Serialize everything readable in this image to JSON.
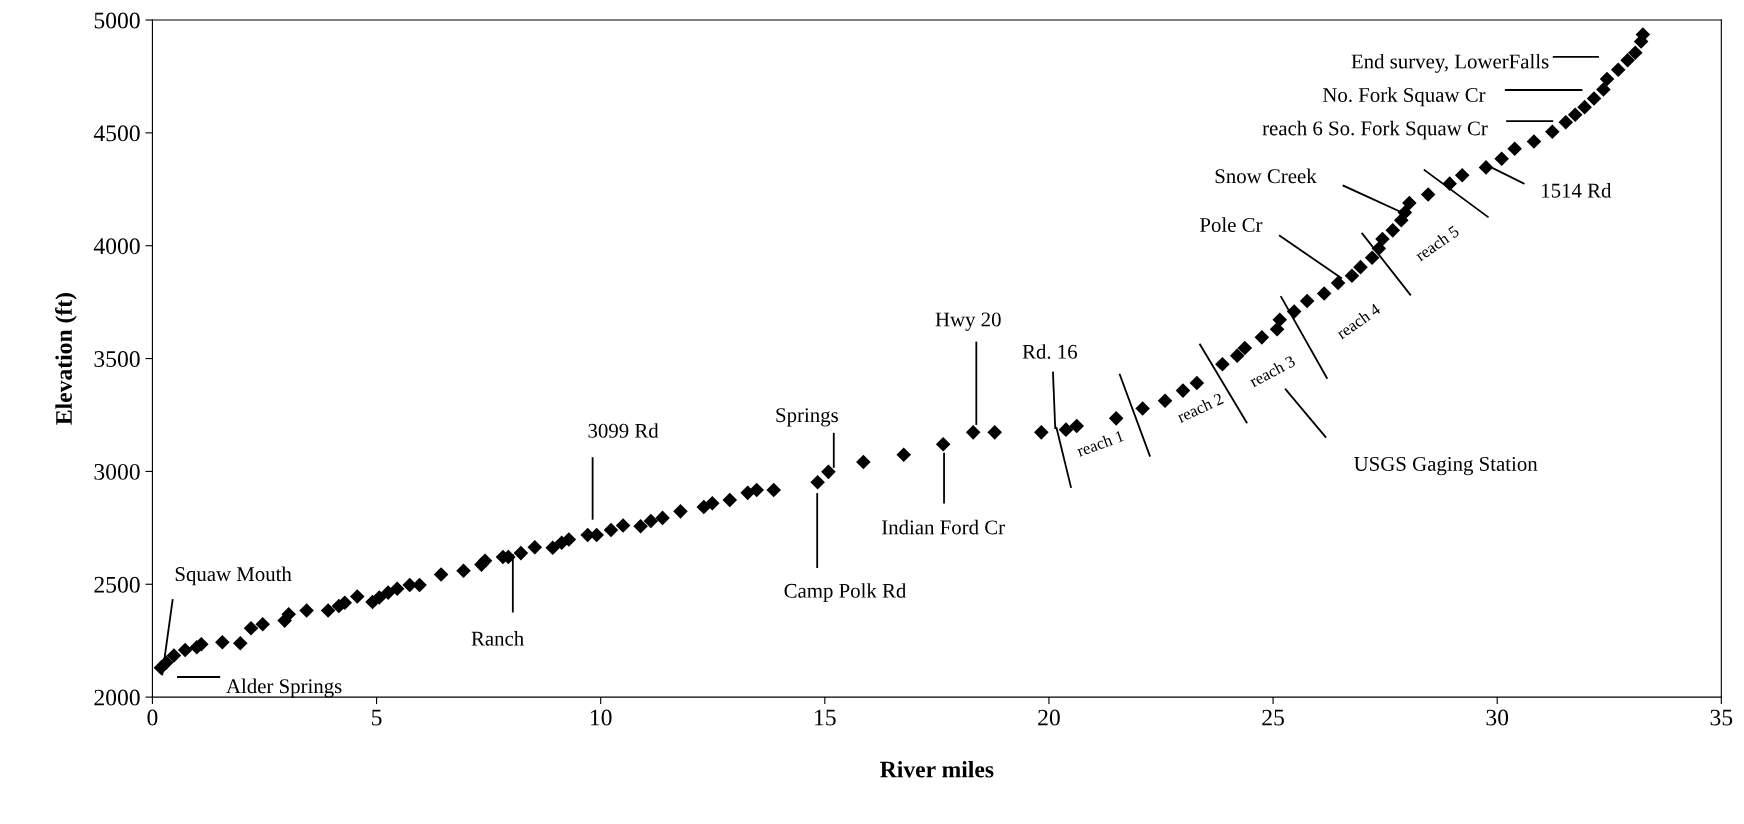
{
  "chart_data": {
    "type": "scatter",
    "xlabel": "River miles",
    "ylabel": "Elevation (ft)",
    "xlim": [
      0,
      35
    ],
    "xticks": [
      0,
      5,
      10,
      15,
      20,
      25,
      30,
      35
    ],
    "ylim": [
      2000,
      5000
    ],
    "yticks": [
      2000,
      2500,
      3000,
      3500,
      4000,
      4500,
      5000
    ],
    "grid": false,
    "marker": "diamond",
    "series": [
      {
        "color": "#000000",
        "x": [
          0.19,
          0.31,
          0.48,
          0.73,
          0.99,
          1.09,
          1.56,
          1.96,
          2.2,
          2.46,
          2.95,
          3.04,
          3.44,
          3.92,
          4.16,
          4.29,
          4.57,
          4.91,
          5.06,
          5.26,
          5.46,
          5.74,
          5.96,
          6.44,
          6.94,
          7.34,
          7.42,
          7.82,
          7.94,
          8.22,
          8.53,
          8.93,
          9.13,
          9.29,
          9.71,
          9.91,
          10.23,
          10.5,
          10.89,
          11.12,
          11.38,
          11.78,
          12.3,
          12.49,
          12.88,
          13.28,
          13.48,
          13.86,
          14.84,
          15.08,
          15.86,
          16.76,
          17.64,
          18.31,
          18.79,
          19.83,
          20.38,
          20.62,
          21.5,
          22.09,
          22.59,
          22.99,
          23.3,
          23.87,
          24.2,
          24.37,
          24.75,
          25.09,
          25.15,
          25.47,
          25.76,
          26.14,
          26.45,
          26.76,
          26.95,
          27.21,
          27.36,
          27.44,
          27.67,
          27.86,
          27.94,
          28.04,
          28.46,
          28.94,
          29.22,
          29.75,
          30.1,
          30.39,
          30.82,
          31.23,
          31.53,
          31.74,
          31.95,
          32.16,
          32.37,
          32.45,
          32.7,
          32.91,
          33.08,
          33.21,
          33.25
        ],
        "values": [
          2130,
          2153,
          2184,
          2209,
          2221,
          2234,
          2243,
          2239,
          2305,
          2323,
          2339,
          2367,
          2384,
          2384,
          2404,
          2418,
          2446,
          2421,
          2441,
          2463,
          2480,
          2497,
          2497,
          2543,
          2560,
          2587,
          2604,
          2621,
          2621,
          2638,
          2664,
          2662,
          2684,
          2698,
          2718,
          2718,
          2740,
          2760,
          2757,
          2780,
          2794,
          2823,
          2842,
          2859,
          2873,
          2905,
          2918,
          2918,
          2952,
          2998,
          3042,
          3074,
          3120,
          3173,
          3173,
          3173,
          3185,
          3201,
          3235,
          3279,
          3313,
          3358,
          3392,
          3475,
          3513,
          3547,
          3594,
          3630,
          3672,
          3708,
          3755,
          3788,
          3835,
          3867,
          3905,
          3947,
          3988,
          4030,
          4068,
          4113,
          4147,
          4189,
          4227,
          4275,
          4312,
          4347,
          4385,
          4430,
          4462,
          4505,
          4547,
          4580,
          4614,
          4652,
          4692,
          4739,
          4780,
          4822,
          4855,
          4905,
          4936
        ]
      }
    ],
    "annotations": [
      {
        "text": "Squaw Mouth",
        "x": 0.22,
        "y": 2100
      },
      "Alder Springs",
      {
        "text": "Ranch",
        "x": 8.04,
        "y": 2630
      },
      "3099 Rd",
      {
        "text": "Springs",
        "x": 15.2,
        "y": 3020
      },
      {
        "text": "Camp Polk Rd",
        "x": 14.83,
        "y": 2900
      },
      {
        "text": "Indian Ford Cr",
        "x": 17.66,
        "y": 3079
      },
      {
        "text": "Hwy 20",
        "x": 18.38,
        "y": 3210
      },
      {
        "text": "Rd. 16",
        "x": 20.14,
        "y": 3192
      },
      "USGS Gaging Station",
      {
        "text": "Pole Cr",
        "x": 26.52,
        "y": 3857
      },
      {
        "text": "Snow Creek",
        "x": 27.98,
        "y": 4138
      },
      {
        "text": "1514 Rd",
        "x": 29.84,
        "y": 4350
      },
      "reach 6 So. Fork Squaw Cr",
      "No. Fork Squaw Cr",
      "End survey, LowerFalls",
      "reach 1",
      "reach 2",
      "reach 3",
      "reach 4",
      "reach 5"
    ]
  }
}
